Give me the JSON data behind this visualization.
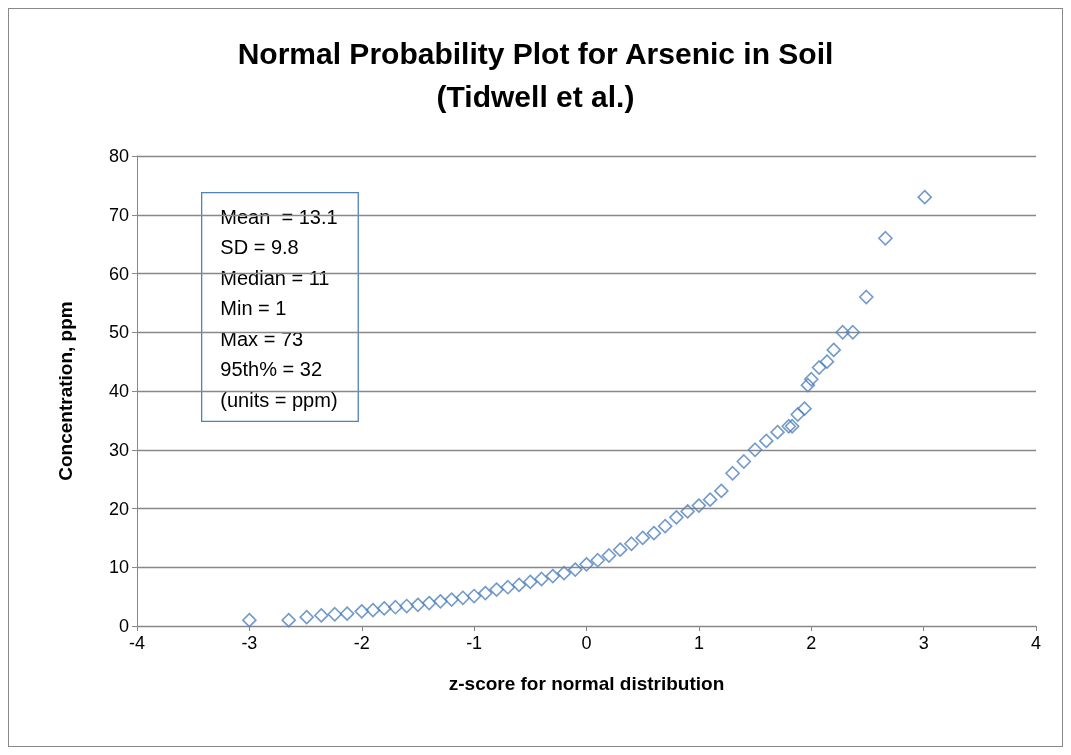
{
  "chart_data": {
    "type": "scatter",
    "title": "Normal Probability Plot for Arsenic in Soil\n(Tidwell et al.)",
    "xlabel": "z-score for normal distribution",
    "ylabel": "Concentration, ppm",
    "annotations": [
      "Mean  = 13.1\nSD = 9.8\nMedian = 11\nMin = 1\nMax = 73\n95th% = 32\n(units = ppm)"
    ],
    "x": [
      -3.0,
      -2.65,
      -2.49,
      -2.36,
      -2.24,
      -2.13,
      -2.0,
      -1.9,
      -1.8,
      -1.7,
      -1.6,
      -1.5,
      -1.4,
      -1.3,
      -1.2,
      -1.1,
      -1.0,
      -0.9,
      -0.8,
      -0.7,
      -0.6,
      -0.5,
      -0.4,
      -0.3,
      -0.2,
      -0.1,
      0,
      0.1,
      0.2,
      0.3,
      0.4,
      0.5,
      0.6,
      0.7,
      0.8,
      0.9,
      1.0,
      1.1,
      1.2,
      1.3,
      1.4,
      1.5,
      1.6,
      1.7,
      1.8,
      1.83,
      1.88,
      1.94,
      1.97,
      2.0,
      2.07,
      2.14,
      2.2,
      2.28,
      2.37,
      2.49,
      2.66,
      3.01
    ],
    "series": [
      {
        "color": "#4f81bd",
        "values": [
          1,
          1,
          1.5,
          1.8,
          2,
          2.1,
          2.5,
          2.7,
          3,
          3.2,
          3.4,
          3.6,
          3.9,
          4.2,
          4.5,
          4.8,
          5.1,
          5.6,
          6.2,
          6.6,
          7,
          7.5,
          8,
          8.5,
          9,
          9.6,
          10.5,
          11.2,
          12,
          13,
          14,
          15,
          15.8,
          17,
          18.5,
          19.5,
          20.5,
          21.5,
          23,
          26,
          28,
          30,
          31.5,
          33,
          34,
          34,
          36,
          37,
          41,
          42,
          44,
          45,
          47,
          50,
          50,
          56,
          66,
          73
        ]
      }
    ],
    "xlim": [
      -4,
      4
    ],
    "xticks": [
      -4,
      -3,
      -2,
      -1,
      0,
      1,
      2,
      3,
      4
    ],
    "ylim": [
      0,
      80
    ],
    "yticks": [
      0,
      10,
      20,
      30,
      40,
      50,
      60,
      70,
      80
    ],
    "grid": "y",
    "marker": "diamond"
  }
}
